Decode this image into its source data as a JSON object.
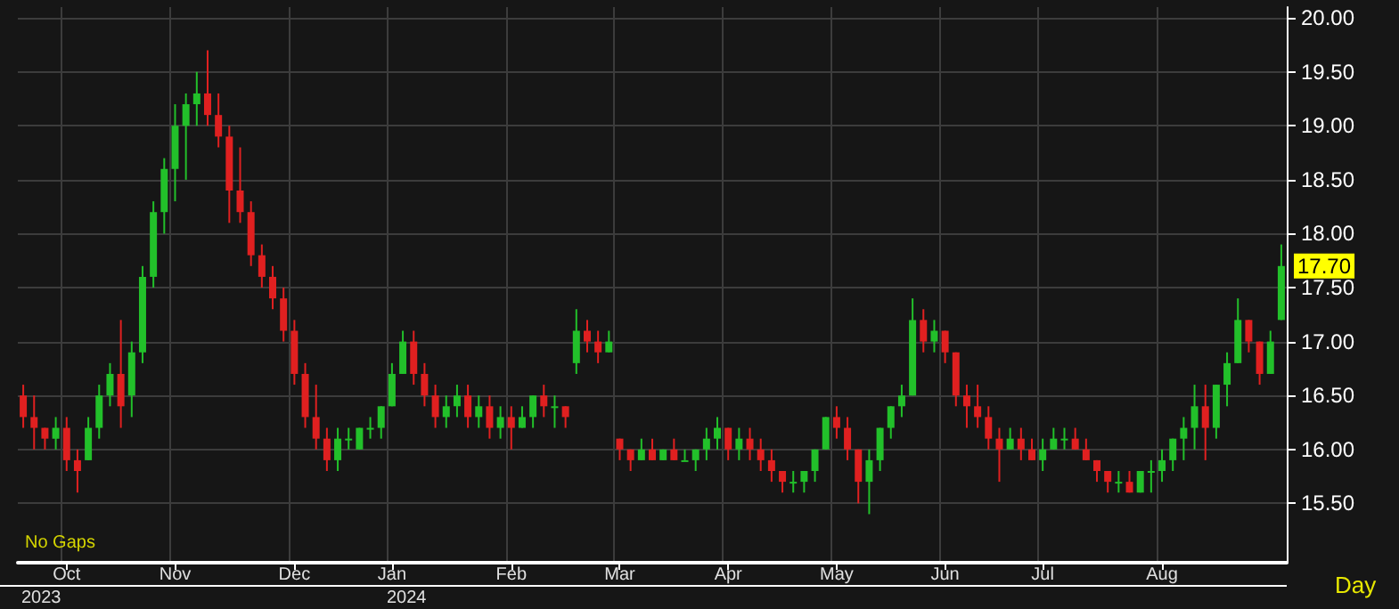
{
  "chart_data": {
    "type": "candlestick",
    "categories": [
      null,
      null,
      null,
      null,
      "Oct",
      null,
      null,
      null,
      null,
      null,
      null,
      null,
      null,
      null,
      "Nov",
      null,
      null,
      null,
      null,
      null,
      null,
      null,
      null,
      null,
      null,
      "Dec",
      null,
      null,
      null,
      null,
      null,
      null,
      null,
      null,
      "Jan",
      null,
      null,
      null,
      null,
      null,
      null,
      null,
      null,
      null,
      null,
      "Feb",
      null,
      null,
      null,
      null,
      null,
      null,
      null,
      null,
      null,
      "Mar",
      null,
      null,
      null,
      null,
      null,
      null,
      null,
      null,
      null,
      "Apr",
      null,
      null,
      null,
      null,
      null,
      null,
      null,
      null,
      null,
      "May",
      null,
      null,
      null,
      null,
      null,
      null,
      null,
      null,
      null,
      "Jun",
      null,
      null,
      null,
      null,
      null,
      null,
      null,
      null,
      "Jul",
      null,
      null,
      null,
      null,
      null,
      null,
      null,
      null,
      null,
      null,
      "Aug",
      null,
      null,
      null,
      null,
      null,
      null,
      null,
      null,
      null,
      null,
      null
    ],
    "ohlc": [
      [
        16.5,
        16.6,
        16.2,
        16.3
      ],
      [
        16.3,
        16.5,
        16.0,
        16.2
      ],
      [
        16.2,
        16.2,
        16.0,
        16.1
      ],
      [
        16.1,
        16.3,
        16.0,
        16.2
      ],
      [
        16.2,
        16.3,
        15.8,
        15.9
      ],
      [
        15.9,
        16.0,
        15.6,
        15.8
      ],
      [
        15.9,
        16.3,
        15.9,
        16.2
      ],
      [
        16.2,
        16.6,
        16.1,
        16.5
      ],
      [
        16.5,
        16.8,
        16.4,
        16.7
      ],
      [
        16.7,
        17.2,
        16.2,
        16.4
      ],
      [
        16.5,
        17.0,
        16.3,
        16.9
      ],
      [
        16.9,
        17.7,
        16.8,
        17.6
      ],
      [
        17.6,
        18.3,
        17.5,
        18.2
      ],
      [
        18.2,
        18.7,
        18.0,
        18.6
      ],
      [
        18.6,
        19.2,
        18.3,
        19.0
      ],
      [
        19.0,
        19.3,
        18.5,
        19.2
      ],
      [
        19.2,
        19.5,
        19.0,
        19.3
      ],
      [
        19.3,
        19.7,
        19.0,
        19.1
      ],
      [
        19.1,
        19.3,
        18.8,
        18.9
      ],
      [
        18.9,
        19.0,
        18.1,
        18.4
      ],
      [
        18.4,
        18.8,
        18.1,
        18.2
      ],
      [
        18.2,
        18.3,
        17.7,
        17.8
      ],
      [
        17.8,
        17.9,
        17.5,
        17.6
      ],
      [
        17.6,
        17.7,
        17.3,
        17.4
      ],
      [
        17.4,
        17.5,
        17.0,
        17.1
      ],
      [
        17.1,
        17.2,
        16.6,
        16.7
      ],
      [
        16.7,
        16.8,
        16.2,
        16.3
      ],
      [
        16.3,
        16.6,
        16.0,
        16.1
      ],
      [
        16.1,
        16.2,
        15.8,
        15.9
      ],
      [
        15.9,
        16.2,
        15.8,
        16.1
      ],
      [
        16.1,
        16.2,
        16.0,
        16.1
      ],
      [
        16.0,
        16.2,
        16.0,
        16.2
      ],
      [
        16.2,
        16.3,
        16.1,
        16.2
      ],
      [
        16.2,
        16.4,
        16.1,
        16.4
      ],
      [
        16.4,
        16.8,
        16.4,
        16.7
      ],
      [
        16.7,
        17.1,
        16.7,
        17.0
      ],
      [
        17.0,
        17.1,
        16.6,
        16.7
      ],
      [
        16.7,
        16.8,
        16.4,
        16.5
      ],
      [
        16.5,
        16.6,
        16.2,
        16.3
      ],
      [
        16.3,
        16.5,
        16.2,
        16.4
      ],
      [
        16.4,
        16.6,
        16.3,
        16.5
      ],
      [
        16.5,
        16.6,
        16.2,
        16.3
      ],
      [
        16.3,
        16.5,
        16.2,
        16.4
      ],
      [
        16.4,
        16.5,
        16.1,
        16.2
      ],
      [
        16.2,
        16.4,
        16.1,
        16.3
      ],
      [
        16.3,
        16.4,
        16.0,
        16.2
      ],
      [
        16.2,
        16.4,
        16.2,
        16.3
      ],
      [
        16.3,
        16.5,
        16.2,
        16.5
      ],
      [
        16.5,
        16.6,
        16.3,
        16.4
      ],
      [
        16.4,
        16.5,
        16.2,
        16.4
      ],
      [
        16.4,
        16.4,
        16.2,
        16.3
      ],
      [
        16.8,
        17.3,
        16.7,
        17.1
      ],
      [
        17.1,
        17.2,
        16.9,
        17.0
      ],
      [
        17.0,
        17.1,
        16.8,
        16.9
      ],
      [
        16.9,
        17.1,
        16.9,
        17.0
      ],
      [
        16.1,
        16.1,
        15.9,
        16.0
      ],
      [
        16.0,
        16.0,
        15.8,
        15.9
      ],
      [
        15.9,
        16.1,
        15.9,
        16.0
      ],
      [
        16.0,
        16.1,
        15.9,
        15.9
      ],
      [
        15.9,
        16.0,
        15.9,
        16.0
      ],
      [
        16.0,
        16.1,
        15.9,
        15.9
      ],
      [
        15.9,
        16.0,
        15.9,
        15.9
      ],
      [
        15.9,
        16.0,
        15.8,
        16.0
      ],
      [
        16.0,
        16.2,
        15.9,
        16.1
      ],
      [
        16.1,
        16.3,
        16.0,
        16.2
      ],
      [
        16.2,
        16.2,
        15.9,
        16.0
      ],
      [
        16.0,
        16.2,
        15.9,
        16.1
      ],
      [
        16.1,
        16.2,
        15.9,
        16.0
      ],
      [
        16.0,
        16.1,
        15.8,
        15.9
      ],
      [
        15.9,
        16.0,
        15.7,
        15.8
      ],
      [
        15.8,
        15.8,
        15.6,
        15.7
      ],
      [
        15.7,
        15.8,
        15.6,
        15.7
      ],
      [
        15.7,
        15.8,
        15.6,
        15.8
      ],
      [
        15.8,
        16.0,
        15.7,
        16.0
      ],
      [
        16.0,
        16.3,
        16.0,
        16.3
      ],
      [
        16.3,
        16.4,
        16.1,
        16.2
      ],
      [
        16.2,
        16.3,
        15.9,
        16.0
      ],
      [
        16.0,
        16.0,
        15.5,
        15.7
      ],
      [
        15.7,
        16.0,
        15.4,
        15.9
      ],
      [
        15.9,
        16.2,
        15.8,
        16.2
      ],
      [
        16.2,
        16.4,
        16.1,
        16.4
      ],
      [
        16.4,
        16.6,
        16.3,
        16.5
      ],
      [
        16.5,
        17.4,
        16.5,
        17.2
      ],
      [
        17.2,
        17.3,
        16.9,
        17.0
      ],
      [
        17.0,
        17.2,
        16.9,
        17.1
      ],
      [
        17.1,
        17.1,
        16.8,
        16.9
      ],
      [
        16.9,
        16.9,
        16.4,
        16.5
      ],
      [
        16.5,
        16.6,
        16.2,
        16.4
      ],
      [
        16.4,
        16.6,
        16.2,
        16.3
      ],
      [
        16.3,
        16.4,
        16.0,
        16.1
      ],
      [
        16.1,
        16.2,
        15.7,
        16.0
      ],
      [
        16.0,
        16.2,
        16.0,
        16.1
      ],
      [
        16.1,
        16.2,
        15.9,
        16.0
      ],
      [
        16.0,
        16.1,
        15.9,
        15.9
      ],
      [
        15.9,
        16.1,
        15.8,
        16.0
      ],
      [
        16.0,
        16.2,
        16.0,
        16.1
      ],
      [
        16.1,
        16.2,
        16.0,
        16.1
      ],
      [
        16.1,
        16.2,
        16.0,
        16.0
      ],
      [
        16.0,
        16.1,
        15.9,
        15.9
      ],
      [
        15.9,
        15.9,
        15.7,
        15.8
      ],
      [
        15.8,
        15.8,
        15.6,
        15.7
      ],
      [
        15.7,
        15.8,
        15.6,
        15.7
      ],
      [
        15.7,
        15.8,
        15.6,
        15.6
      ],
      [
        15.6,
        15.8,
        15.6,
        15.8
      ],
      [
        15.8,
        15.9,
        15.6,
        15.8
      ],
      [
        15.8,
        16.0,
        15.7,
        15.9
      ],
      [
        15.9,
        16.1,
        15.8,
        16.1
      ],
      [
        16.1,
        16.3,
        15.9,
        16.2
      ],
      [
        16.2,
        16.6,
        16.0,
        16.4
      ],
      [
        16.4,
        16.6,
        15.9,
        16.2
      ],
      [
        16.2,
        16.6,
        16.1,
        16.6
      ],
      [
        16.6,
        16.9,
        16.4,
        16.8
      ],
      [
        16.8,
        17.4,
        16.8,
        17.2
      ],
      [
        17.2,
        17.2,
        16.9,
        17.0
      ],
      [
        17.0,
        17.0,
        16.6,
        16.7
      ],
      [
        16.7,
        17.1,
        16.7,
        17.0
      ],
      [
        17.2,
        17.9,
        17.2,
        17.7
      ]
    ],
    "ylim": [
      14.95,
      20.1
    ],
    "yticks": [
      {
        "value": 15.5,
        "label": "15.50"
      },
      {
        "value": 16,
        "label": "16.00"
      },
      {
        "value": 16.5,
        "label": "16.50"
      },
      {
        "value": 17,
        "label": "17.00"
      },
      {
        "value": 17.5,
        "label": "17.50"
      },
      {
        "value": 18,
        "label": "18.00"
      },
      {
        "value": 18.5,
        "label": "18.50"
      },
      {
        "value": 19,
        "label": "19.00"
      },
      {
        "value": 19.5,
        "label": "19.50"
      },
      {
        "value": 20,
        "label": "20.00"
      }
    ],
    "grid": true,
    "annotations": [
      "No Gaps",
      "Day",
      "17.70",
      "2023",
      "2024"
    ]
  }
}
